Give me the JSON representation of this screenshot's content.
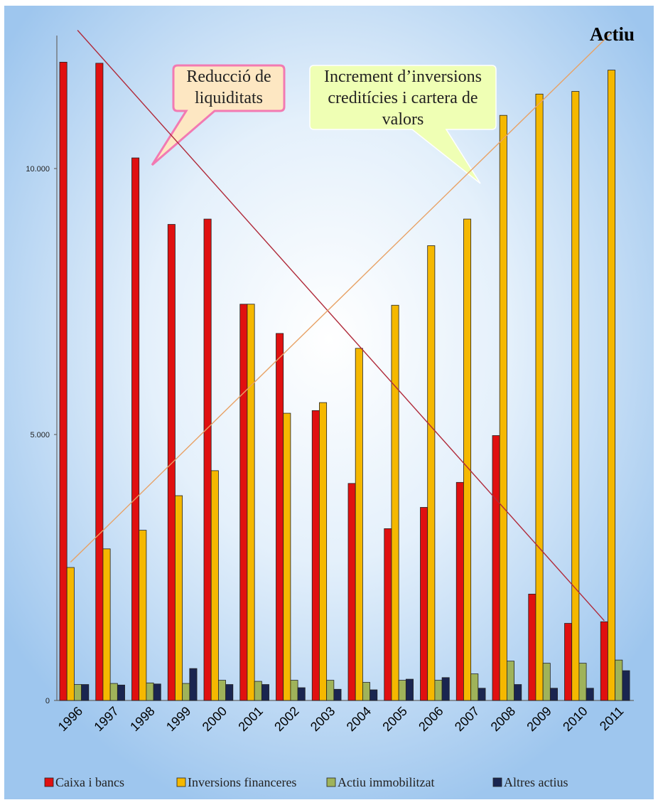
{
  "chart_data": {
    "type": "bar",
    "title": "Actiu",
    "categories": [
      "1996",
      "1997",
      "1998",
      "1999",
      "2000",
      "2001",
      "2002",
      "2003",
      "2004",
      "2005",
      "2006",
      "2007",
      "2008",
      "2009",
      "2010",
      "2011"
    ],
    "series": [
      {
        "name": "Caixa i bancs",
        "color": "#e01010",
        "values": [
          12000,
          11980,
          10200,
          8950,
          9050,
          7450,
          6900,
          5450,
          4080,
          3230,
          3630,
          4100,
          4980,
          2000,
          1450,
          1480
        ]
      },
      {
        "name": "Inversions financeres",
        "color": "#f5b800",
        "values": [
          2500,
          2850,
          3200,
          3850,
          4320,
          7450,
          5400,
          5600,
          6620,
          7430,
          8550,
          9050,
          11000,
          11400,
          11450,
          11850
        ]
      },
      {
        "name": "Actiu immobilitzat",
        "color": "#9fb35a",
        "values": [
          300,
          320,
          330,
          320,
          380,
          360,
          380,
          380,
          340,
          380,
          380,
          500,
          740,
          700,
          700,
          760
        ]
      },
      {
        "name": "Altres actius",
        "color": "#1a2550",
        "values": [
          300,
          290,
          310,
          600,
          300,
          300,
          240,
          210,
          200,
          400,
          430,
          230,
          300,
          230,
          230,
          560
        ]
      }
    ],
    "ylim": [
      0,
      12500
    ],
    "yticks": [
      {
        "value": 0,
        "label": "0"
      },
      {
        "value": 5000,
        "label": "5.000"
      },
      {
        "value": 10000,
        "label": "10.000"
      }
    ],
    "trendlines": [
      {
        "series": "Caixa i bancs",
        "color": "#b02a3a",
        "points": [
          {
            "x": "1996",
            "y": 12600
          },
          {
            "x": "2011",
            "y": 1500
          }
        ]
      },
      {
        "series": "Inversions financeres",
        "color": "#e8a266",
        "points": [
          {
            "x": "1996",
            "y": 2600
          },
          {
            "x": "2011",
            "y": 12550
          }
        ]
      }
    ],
    "annotations": [
      {
        "text": "Reducció de liquiditats",
        "points_to": {
          "series": "Caixa i bancs",
          "x": "1998"
        }
      },
      {
        "text": "Increment d’inversions creditícies i cartera de valors",
        "points_to": {
          "series": "Inversions financeres",
          "x": "2007"
        }
      }
    ],
    "legend_position": "bottom",
    "grid": false
  }
}
